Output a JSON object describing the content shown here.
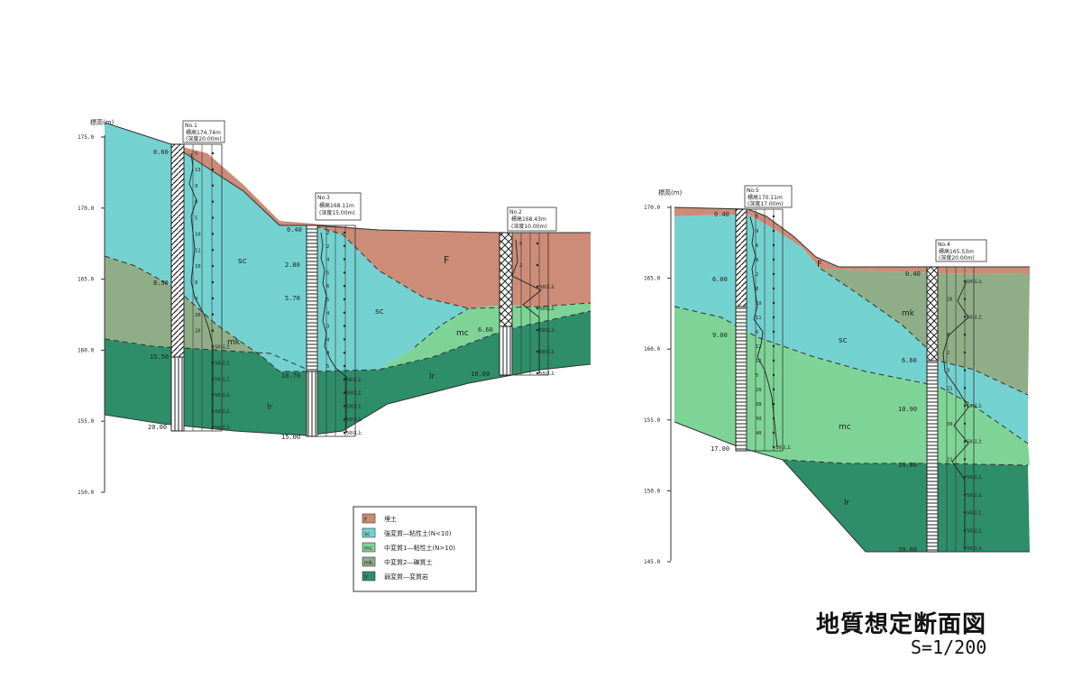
{
  "colors": {
    "F": "#CC8C77",
    "sc": "#73D2D0",
    "mc": "#7ED496",
    "mk": "#8FAE88",
    "lr": "#2E8E6A"
  },
  "left_section": {
    "elev_label": "標高(m)",
    "elev_ticks": [
      "175.0",
      "170.0",
      "165.0",
      "160.0",
      "155.0",
      "150.0"
    ],
    "boreholes": [
      {
        "id": "B1",
        "name": "No.1",
        "header1": "標高174.74m",
        "header2": "(深度20.00m)",
        "depths": [
          "0.60",
          "8.50",
          "15.50",
          "20.00"
        ]
      },
      {
        "id": "B3",
        "name": "No.3",
        "header1": "標高168.11m",
        "header2": "(深度15.00m)",
        "depths": [
          "0.40",
          "2.80",
          "5.70",
          "10.70",
          "15.00"
        ]
      },
      {
        "id": "B2",
        "name": "No.2",
        "header1": "標高168.43m",
        "header2": "(深度10.00m)",
        "depths": [
          "6.60",
          "10.00"
        ]
      }
    ],
    "nvalues": {
      "B1": [
        "5",
        "13",
        "9",
        "8",
        "5",
        "10",
        "11",
        "10",
        "8",
        "9",
        "20",
        "20",
        "50以上",
        "50以上",
        "50以上",
        "50以上",
        "50以上",
        "50以上"
      ],
      "B3": [
        "2",
        "2",
        "4",
        "5",
        "6",
        "5",
        "4",
        "3",
        "4",
        "4",
        "5",
        "50以上",
        "50以上",
        "50以上",
        "50以上",
        "50以上"
      ],
      "B2": [
        "5",
        "2",
        "50以上",
        "50以上",
        "50以上",
        "50以上",
        "50以上"
      ]
    },
    "layer_labels": {
      "F": "F",
      "sc": "sc",
      "mk": "mk",
      "lr": "lr",
      "mc": "mc"
    }
  },
  "right_section": {
    "elev_label": "標高(m)",
    "elev_ticks": [
      "170.0",
      "165.0",
      "160.0",
      "155.0",
      "150.0",
      "145.0"
    ],
    "boreholes": [
      {
        "id": "B5",
        "name": "No.5",
        "header1": "標高170.11m",
        "header2": "(深度17.00m)",
        "depths": [
          "0.40",
          "6.00",
          "9.00",
          "17.00"
        ]
      },
      {
        "id": "B4",
        "name": "No.4",
        "header1": "標高165.53m",
        "header2": "(深度20.00m)",
        "depths": [
          "0.40",
          "6.60",
          "10.90",
          "14.80",
          "20.00"
        ]
      }
    ],
    "nvalues": {
      "B5": [
        "5",
        "9",
        "6",
        "8",
        "2",
        "8",
        "10",
        "11",
        "6",
        "12",
        "12",
        "5",
        "16",
        "38",
        "30",
        "40",
        "50以上"
      ],
      "B4": [
        "50以上",
        "26",
        "50以上",
        "8",
        "2",
        "3",
        "21",
        "50以上",
        "30",
        "50以上",
        "21",
        "50以上",
        "50以上",
        "50以上",
        "50以上",
        "50以上"
      ]
    },
    "layer_labels": {
      "F": "F",
      "mk": "mk",
      "sc": "sc",
      "mc": "mc",
      "lr": "lr"
    }
  },
  "legend": [
    {
      "key": "F",
      "code": "F",
      "label": "埋土"
    },
    {
      "key": "sc",
      "code": "sc",
      "label": "強変質―粘性土(N<10)"
    },
    {
      "key": "mc",
      "code": "mc",
      "label": "中変質1―粘性土(N>10)"
    },
    {
      "key": "mk",
      "code": "mk",
      "label": "中変質2―礫質土"
    },
    {
      "key": "lr",
      "code": "lr",
      "label": "弱変質―変質岩"
    }
  ],
  "title": "地質想定断面図",
  "scale": "S=1/200"
}
